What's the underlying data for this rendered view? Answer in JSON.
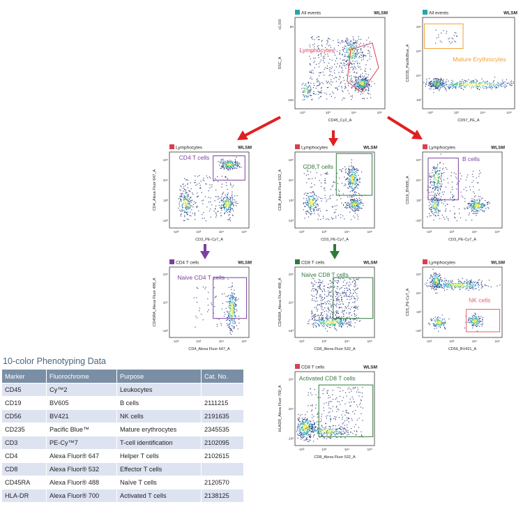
{
  "colors": {
    "red_arrow": "#e02020",
    "purple": "#7b3fa0",
    "green": "#2f7a3a",
    "orange": "#f0a030",
    "teal": "#2aa5a5",
    "pink_gate": "#e06070",
    "lymph_gate": "#d84050",
    "table_header": "#7a8fa6",
    "table_stripe": "#dde3f0",
    "title_blue": "#4a6580"
  },
  "brand": "WLSM",
  "chart_data": [
    {
      "type": "scatter",
      "id": "p1",
      "population": "All events",
      "pop_color": "teal",
      "xlabel": "CD45_Cy2_A",
      "ylabel": "SSC_A",
      "ylabel_extra": "x1,000",
      "xticks": [
        "-10³",
        "10³",
        "10⁴",
        "10⁵"
      ],
      "yticks": [
        "50",
        "100"
      ],
      "gate_label": "Lymphocytes",
      "gate_color": "lymph_gate"
    },
    {
      "type": "scatter",
      "id": "p2",
      "population": "All events",
      "pop_color": "teal",
      "xlabel": "CD57_PE_A",
      "ylabel": "CD235_PacificBlue_A",
      "xticks": [
        "-10³",
        "10³",
        "10⁴",
        "10⁵"
      ],
      "yticks": [
        "10⁶",
        "10⁵",
        "10⁴",
        "10³"
      ],
      "gate_label": "Mature Erythrocytes",
      "gate_color": "orange"
    },
    {
      "type": "scatter",
      "id": "p3",
      "population": "Lymphocytes",
      "pop_color": "lymph_gate",
      "xlabel": "CD3_PE-Cy7_A",
      "ylabel": "CD4_Alexa Fluor 647_A",
      "xticks": [
        "-10³",
        "10³",
        "10⁴",
        "10⁵"
      ],
      "yticks": [
        "10⁵",
        "10⁴",
        "10³",
        "-10³"
      ],
      "gate_label": "CD4 T cells",
      "gate_color": "purple"
    },
    {
      "type": "scatter",
      "id": "p4",
      "population": "Lymphocytes",
      "pop_color": "lymph_gate",
      "xlabel": "CD3_PE-Cy7_A",
      "ylabel": "CD8_Alexa Fluor 532_A",
      "xticks": [
        "-10³",
        "10³",
        "10⁴",
        "10⁵"
      ],
      "yticks": [
        "10⁵",
        "10⁴",
        "10³",
        "-10³"
      ],
      "gate_label": "CD8 T cells",
      "gate_color": "green"
    },
    {
      "type": "scatter",
      "id": "p5",
      "population": "Lymphocytes",
      "pop_color": "lymph_gate",
      "xlabel": "CD3_PE-Cy7_A",
      "ylabel": "CD19_BV605_A",
      "xticks": [
        "-10³",
        "10³",
        "10⁴",
        "10⁵"
      ],
      "yticks": [
        "10⁵",
        "10⁴",
        "10³",
        "-10³"
      ],
      "gate_label": "B cells",
      "gate_color": "purple"
    },
    {
      "type": "scatter",
      "id": "p6",
      "population": "CD4 T cells",
      "pop_color": "purple",
      "xlabel": "CD4_Alexa Fluor 647_A",
      "ylabel": "CD45RA_Alexa Fluor 488_A",
      "xticks": [
        "-10³",
        "10³",
        "10⁴",
        "10⁵"
      ],
      "yticks": [
        "10⁵",
        "10⁴",
        "-10³"
      ],
      "gate_label": "Naive CD4 T cells",
      "gate_color": "purple"
    },
    {
      "type": "scatter",
      "id": "p7",
      "population": "CD8 T cells",
      "pop_color": "green",
      "xlabel": "CD8_Alexa Fluor 532_A",
      "ylabel": "CD45RA_Alexa Fluor 488_A",
      "xticks": [
        "-10³",
        "10³",
        "10⁴",
        "10⁵"
      ],
      "yticks": [
        "10⁵",
        "10⁴",
        "-10³"
      ],
      "gate_label": "Naive CD8 T cells",
      "gate_color": "green"
    },
    {
      "type": "scatter",
      "id": "p8",
      "population": "Lymphocytes",
      "pop_color": "lymph_gate",
      "xlabel": "CD56_BV421_A",
      "ylabel": "CD3_PE-Cy7_A",
      "xticks": [
        "-10³",
        "10³",
        "10⁴",
        "10⁵"
      ],
      "yticks": [
        "10⁵",
        "10⁴",
        "10³",
        "-10³"
      ],
      "gate_label": "NK cells",
      "gate_color": "pink_gate"
    },
    {
      "type": "scatter",
      "id": "p9",
      "population": "CD8 T cells",
      "pop_color": "lymph_gate",
      "xlabel": "CD8_Alexa Fluor 532_A",
      "ylabel": "HLADR_Alexa Fluor 700_A",
      "xticks": [
        "-10³",
        "10³",
        "10⁴",
        "10⁵"
      ],
      "yticks": [
        "10⁵",
        "10⁴",
        "-10³"
      ],
      "gate_label": "Activated CD8 T cells",
      "gate_color": "green"
    }
  ],
  "table": {
    "title": "10-color Phenotyping Data",
    "headers": [
      "Marker",
      "Fluorochrome",
      "Purpose",
      "Cat. No."
    ],
    "rows": [
      [
        "CD45",
        "Cy™2",
        "Leukocytes",
        ""
      ],
      [
        "CD19",
        "BV605",
        "B cells",
        "2111215"
      ],
      [
        "CD56",
        "BV421",
        "NK cells",
        "2191635"
      ],
      [
        "CD235",
        "Pacific Blue™",
        "Mature erythrocytes",
        "2345535"
      ],
      [
        "CD3",
        "PE-Cy™7",
        "T-cell identification",
        "2102095"
      ],
      [
        "CD4",
        "Alexa Fluor® 647",
        "Helper T cells",
        "2102615"
      ],
      [
        "CD8",
        "Alexa Fluor® 532",
        "Effector T cells",
        ""
      ],
      [
        "CD45RA",
        "Alexa Fluor® 488",
        "Naïve T cells",
        "2120570"
      ],
      [
        "HLA-DR",
        "Alexa Fluor® 700",
        "Activated T cells",
        "2138125"
      ]
    ]
  }
}
